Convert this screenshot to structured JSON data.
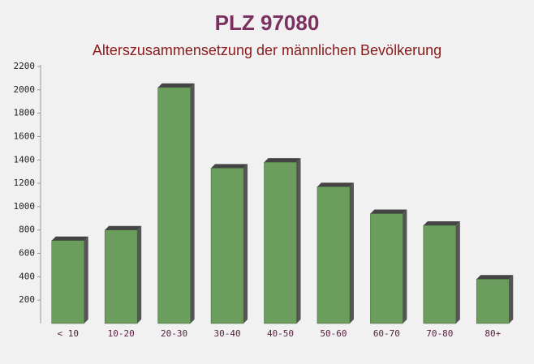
{
  "chart_data": {
    "type": "bar",
    "title": "PLZ 97080",
    "subtitle": "Alterszusammensetzung der männlichen Bevölkerung",
    "categories": [
      "< 10",
      "10-20",
      "20-30",
      "30-40",
      "40-50",
      "50-60",
      "60-70",
      "70-80",
      "80+"
    ],
    "values": [
      710,
      800,
      2020,
      1330,
      1380,
      1170,
      940,
      840,
      380
    ],
    "color": "#6b9e5c",
    "ylim": [
      0,
      2200
    ],
    "yticks": [
      200,
      400,
      600,
      800,
      1000,
      1200,
      1400,
      1600,
      1800,
      2000,
      2200
    ],
    "grid": false
  }
}
